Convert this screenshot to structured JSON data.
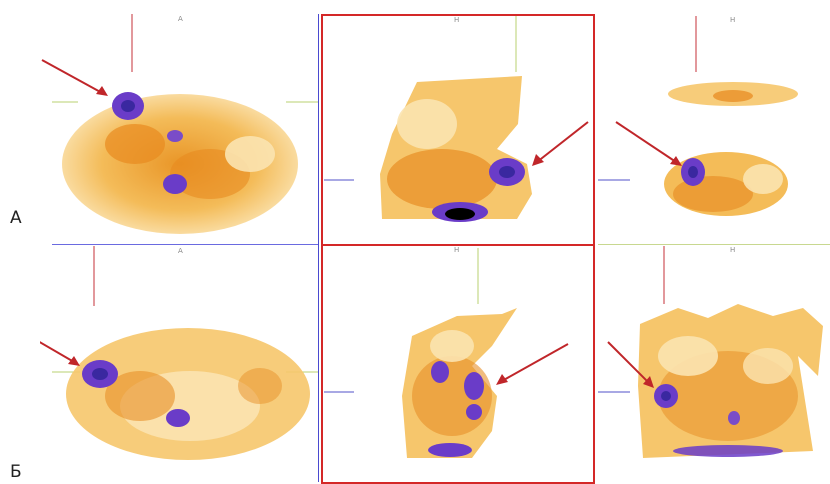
{
  "row_labels": {
    "top": "А",
    "bottom": "Б"
  },
  "view_labels": {
    "top_left": "A",
    "top_middle": "H",
    "top_right": "H",
    "bottom_left": "A",
    "bottom_middle": "H",
    "bottom_right": "H"
  },
  "colors": {
    "hot_low": "#f7c86a",
    "hot_mid": "#f0a030",
    "hot_high": "#d8641c",
    "lesion": "#6a3cc8",
    "lesion_core": "#3a28a0",
    "arrow": "#c0262a",
    "crosshair_red": "#c4323a",
    "crosshair_green": "#b8d070",
    "crosshair_blue": "#5050c8",
    "frame": "#d42828"
  }
}
